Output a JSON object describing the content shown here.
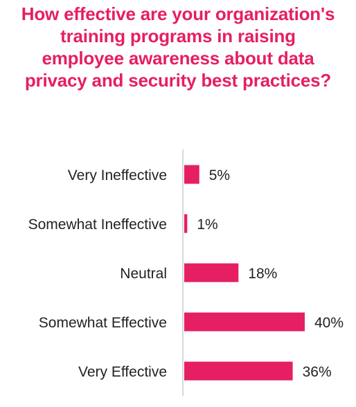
{
  "chart_data": {
    "type": "bar",
    "orientation": "horizontal",
    "title": "How effective are your organization's training programs in raising employee awareness about data privacy and security best practices?",
    "categories": [
      "Very Ineffective",
      "Somewhat Ineffective",
      "Neutral",
      "Somewhat Effective",
      "Very Effective"
    ],
    "values": [
      5,
      1,
      18,
      40,
      36
    ],
    "value_labels": [
      "5%",
      "1%",
      "18%",
      "40%",
      "36%"
    ],
    "xlim": [
      0,
      40
    ],
    "grid": false,
    "legend": "none",
    "bar_color": "#e61e64",
    "axis_color": "#cccccc",
    "title_color": "#e61e64"
  }
}
